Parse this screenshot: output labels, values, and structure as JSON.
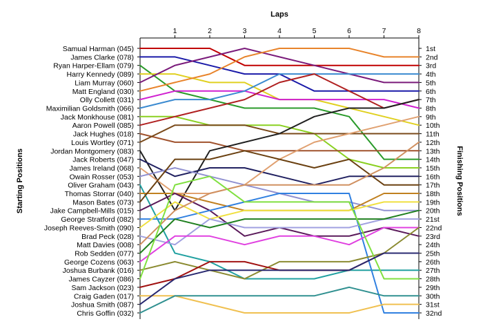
{
  "chart_data": {
    "type": "line",
    "title": "",
    "top_axis_title": "Laps",
    "left_axis_title": "Starting Positions",
    "right_axis_title": "Finishing Positions",
    "x": [
      0,
      1,
      2,
      3,
      4,
      5,
      6,
      7,
      8
    ],
    "lap_tick_labels": [
      "1",
      "2",
      "3",
      "4",
      "5",
      "6",
      "7",
      "8"
    ],
    "position_labels": [
      "1st",
      "2nd",
      "3rd",
      "4th",
      "5th",
      "6th",
      "7th",
      "8th",
      "9th",
      "10th",
      "11th",
      "12th",
      "13th",
      "14th",
      "15th",
      "16th",
      "17th",
      "18th",
      "19th",
      "20th",
      "21st",
      "22nd",
      "23rd",
      "24th",
      "25th",
      "26th",
      "27th",
      "28th",
      "29th",
      "30th",
      "31st",
      "32nd"
    ],
    "y_reversed": true,
    "ylim": [
      1,
      32
    ],
    "grid": false,
    "legend": "none",
    "series": [
      {
        "name": "Samual Harman (045)",
        "color": "#c00000",
        "values": [
          1,
          1,
          1,
          3,
          3,
          3,
          3,
          3,
          3
        ]
      },
      {
        "name": "James Clarke (078)",
        "color": "#1a1aa8",
        "values": [
          2,
          2,
          3,
          4,
          4,
          6,
          6,
          6,
          6
        ]
      },
      {
        "name": "Ryan Harper-Ellam (079)",
        "color": "#2a9a2a",
        "values": [
          3,
          6,
          7,
          8,
          8,
          8,
          9,
          14,
          14
        ]
      },
      {
        "name": "Harry Kennedy (089)",
        "color": "#e0d020",
        "values": [
          4,
          4,
          5,
          5,
          7,
          7,
          8,
          9,
          10
        ]
      },
      {
        "name": "Liam Murray (060)",
        "color": "#7a1a7a",
        "values": [
          5,
          3,
          2,
          1,
          2,
          3,
          4,
          5,
          5
        ]
      },
      {
        "name": "Matt England (030)",
        "color": "#e8832a",
        "values": [
          6,
          5,
          4,
          2,
          1,
          1,
          1,
          2,
          2
        ]
      },
      {
        "name": "Olly Collett (031)",
        "color": "#d020d0",
        "values": [
          7,
          6,
          6,
          6,
          7,
          7,
          7,
          7,
          8
        ]
      },
      {
        "name": "Maximilian Goldsmith (066)",
        "color": "#3a8ad0",
        "values": [
          8,
          7,
          7,
          6,
          4,
          4,
          4,
          4,
          4
        ]
      },
      {
        "name": "Jack Monkhouse (081)",
        "color": "#8ad020",
        "values": [
          9,
          9,
          10,
          10,
          10,
          11,
          14,
          15,
          15
        ]
      },
      {
        "name": "Aaron Powell (085)",
        "color": "#b02020",
        "values": [
          10,
          9,
          8,
          7,
          5,
          4,
          6,
          8,
          7
        ]
      },
      {
        "name": "Jack Hughes (018)",
        "color": "#a0522d",
        "values": [
          11,
          12,
          12,
          13,
          13,
          13,
          13,
          13,
          13
        ]
      },
      {
        "name": "Louis Wortley (071)",
        "color": "#7a4a1a",
        "values": [
          12,
          10,
          10,
          10,
          11,
          11,
          11,
          11,
          11
        ]
      },
      {
        "name": "Jordan Montgomery (083)",
        "color": "#202020",
        "values": [
          13,
          20,
          13,
          12,
          11,
          9,
          8,
          8,
          7
        ]
      },
      {
        "name": "Jack Roberts (047)",
        "color": "#202060",
        "values": [
          14,
          16,
          15,
          15,
          16,
          17,
          16,
          16,
          16
        ]
      },
      {
        "name": "James Ireland (068)",
        "color": "#e0a070",
        "values": [
          15,
          18,
          18,
          17,
          14,
          12,
          11,
          10,
          9
        ]
      },
      {
        "name": "Owain Rosser (053)",
        "color": "#9090d0",
        "values": [
          16,
          15,
          16,
          17,
          18,
          19,
          19,
          20,
          20
        ]
      },
      {
        "name": "Oliver Graham (043)",
        "color": "#20a0a0",
        "values": [
          17,
          25,
          26,
          28,
          28,
          28,
          27,
          27,
          27
        ]
      },
      {
        "name": "Thomas Storrar (040)",
        "color": "#c08020",
        "values": [
          18,
          18,
          19,
          20,
          20,
          20,
          20,
          18,
          18
        ]
      },
      {
        "name": "Mason Bates (073)",
        "color": "#6a4010",
        "values": [
          19,
          14,
          14,
          13,
          14,
          15,
          14,
          17,
          17
        ]
      },
      {
        "name": "Jake Campbell-Mills (015)",
        "color": "#5a1a5a",
        "values": [
          20,
          18,
          20,
          23,
          22,
          23,
          23,
          22,
          23
        ]
      },
      {
        "name": "George Stratford (082)",
        "color": "#3080e0",
        "values": [
          21,
          21,
          20,
          19,
          18,
          18,
          18,
          32,
          32
        ]
      },
      {
        "name": "Joseph Reeves-Smith (090)",
        "color": "#f0e040",
        "values": [
          22,
          19,
          21,
          20,
          20,
          20,
          20,
          19,
          19
        ]
      },
      {
        "name": "Brad Peck (028)",
        "color": "#a0a0e0",
        "values": [
          23,
          24,
          21,
          22,
          22,
          22,
          22,
          21,
          21
        ]
      },
      {
        "name": "Matt Davies (008)",
        "color": "#d09060",
        "values": [
          24,
          20,
          18,
          17,
          17,
          17,
          17,
          15,
          12
        ]
      },
      {
        "name": "Rob Sedden (077)",
        "color": "#208020",
        "values": [
          25,
          21,
          22,
          21,
          21,
          21,
          21,
          21,
          20
        ]
      },
      {
        "name": "George Cozens (063)",
        "color": "#e040e0",
        "values": [
          26,
          23,
          23,
          24,
          23,
          23,
          24,
          22,
          22
        ]
      },
      {
        "name": "Joshua Burbank (016)",
        "color": "#8a8a30",
        "values": [
          27,
          26,
          27,
          28,
          26,
          26,
          26,
          25,
          22
        ]
      },
      {
        "name": "James Cayzer (086)",
        "color": "#80e040",
        "values": [
          28,
          17,
          16,
          19,
          19,
          19,
          19,
          28,
          28
        ]
      },
      {
        "name": "Sam Jackson (023)",
        "color": "#a01010",
        "values": [
          29,
          28,
          26,
          26,
          27,
          27,
          27,
          25,
          25
        ]
      },
      {
        "name": "Craig Gaden (017)",
        "color": "#f0c050",
        "values": [
          30,
          30,
          31,
          32,
          32,
          32,
          32,
          31,
          31
        ]
      },
      {
        "name": "Joshua Smith (087)",
        "color": "#282870",
        "values": [
          31,
          28,
          27,
          27,
          27,
          27,
          27,
          25,
          25
        ]
      },
      {
        "name": "Chris Goffin (032)",
        "color": "#309090",
        "values": [
          32,
          30,
          30,
          30,
          30,
          30,
          29,
          30,
          30
        ]
      }
    ]
  }
}
